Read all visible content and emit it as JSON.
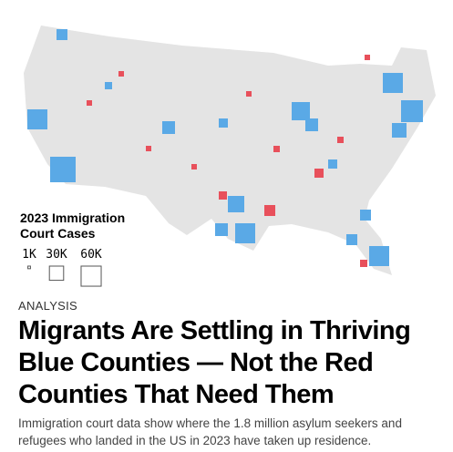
{
  "legend": {
    "title": "2023 Immigration Court Cases",
    "items": [
      {
        "value": 1000,
        "label": "1K"
      },
      {
        "value": 30000,
        "label": "30K"
      },
      {
        "value": 60000,
        "label": "60K"
      }
    ]
  },
  "article": {
    "kicker": "ANALYSIS",
    "headline": "Migrants Are Settling in Thriving Blue Counties — Not the Red Counties That Need Them",
    "dek": "Immigration court data show where the 1.8 million asylum seekers and refugees who landed in the US in 2023 have taken up residence."
  }
}
